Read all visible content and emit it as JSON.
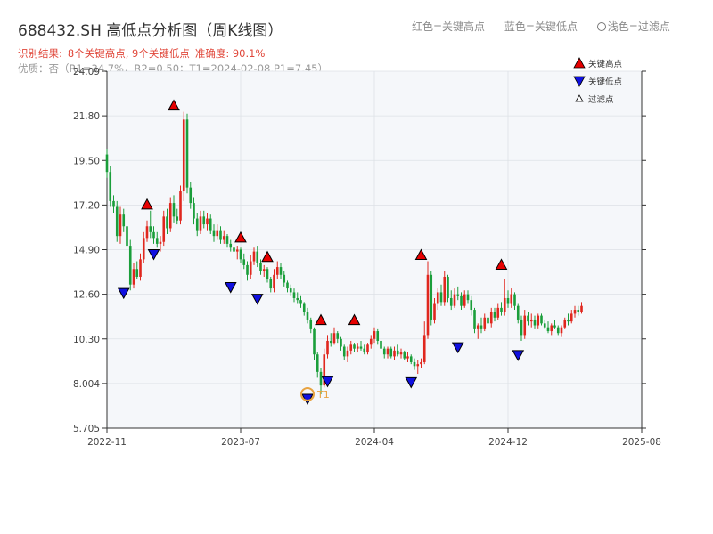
{
  "header": {
    "title": "688432.SH 高低点分析图（周K线图）",
    "legend_red": "红色=关键高点",
    "legend_blue": "蓝色=关键低点",
    "legend_hollow": "浅色=过滤点",
    "result_prefix": "识别结果:",
    "result_detail": "8个关键高点, 9个关键低点",
    "accuracy": "准确度: 90.1%",
    "quality": "优质：否（R1=34.7%，R2=0.50；T1=2024-02-08,P1=7.45）"
  },
  "chart_data": {
    "type": "candlestick",
    "y_ticks": [
      "5.705",
      "8.004",
      "10.30",
      "12.60",
      "14.90",
      "17.20",
      "19.50",
      "21.80",
      "24.09"
    ],
    "ylim": [
      5.705,
      24.09
    ],
    "x_ticks": [
      "2022-11",
      "2023-07",
      "2024-04",
      "2024-12",
      "2025-08"
    ],
    "x_tick_positions": [
      0,
      40,
      80,
      120,
      160
    ],
    "xlim": [
      0,
      160
    ],
    "candles": [
      {
        "o": 19.8,
        "h": 20.1,
        "l": 18.6,
        "c": 18.9
      },
      {
        "o": 18.9,
        "h": 19.2,
        "l": 17.1,
        "c": 17.4
      },
      {
        "o": 17.4,
        "h": 17.7,
        "l": 16.8,
        "c": 17.1
      },
      {
        "o": 17.1,
        "h": 17.4,
        "l": 15.3,
        "c": 15.6
      },
      {
        "o": 15.6,
        "h": 17.1,
        "l": 15.2,
        "c": 16.7
      },
      {
        "o": 16.7,
        "h": 17.0,
        "l": 15.8,
        "c": 16.1
      },
      {
        "o": 16.1,
        "h": 16.4,
        "l": 14.8,
        "c": 15.1
      },
      {
        "o": 15.1,
        "h": 15.4,
        "l": 12.8,
        "c": 13.1
      },
      {
        "o": 13.1,
        "h": 14.2,
        "l": 12.9,
        "c": 13.9
      },
      {
        "o": 13.9,
        "h": 14.3,
        "l": 13.4,
        "c": 13.5
      },
      {
        "o": 13.5,
        "h": 14.7,
        "l": 13.3,
        "c": 14.4
      },
      {
        "o": 14.4,
        "h": 15.8,
        "l": 14.2,
        "c": 15.5
      },
      {
        "o": 15.5,
        "h": 16.4,
        "l": 15.3,
        "c": 16.1
      },
      {
        "o": 16.1,
        "h": 16.9,
        "l": 15.5,
        "c": 15.8
      },
      {
        "o": 15.8,
        "h": 16.1,
        "l": 15.2,
        "c": 15.5
      },
      {
        "o": 15.5,
        "h": 15.8,
        "l": 15.0,
        "c": 15.2
      },
      {
        "o": 15.2,
        "h": 15.6,
        "l": 14.8,
        "c": 15.3
      },
      {
        "o": 15.3,
        "h": 16.9,
        "l": 15.1,
        "c": 16.6
      },
      {
        "o": 16.6,
        "h": 17.0,
        "l": 15.7,
        "c": 16.0
      },
      {
        "o": 16.0,
        "h": 17.6,
        "l": 15.8,
        "c": 17.3
      },
      {
        "o": 17.3,
        "h": 17.7,
        "l": 16.3,
        "c": 16.6
      },
      {
        "o": 16.6,
        "h": 17.0,
        "l": 16.2,
        "c": 16.4
      },
      {
        "o": 16.4,
        "h": 18.2,
        "l": 16.2,
        "c": 17.9
      },
      {
        "o": 17.9,
        "h": 22.0,
        "l": 17.4,
        "c": 21.6
      },
      {
        "o": 21.6,
        "h": 21.9,
        "l": 17.8,
        "c": 18.1
      },
      {
        "o": 18.1,
        "h": 18.4,
        "l": 17.0,
        "c": 17.3
      },
      {
        "o": 17.3,
        "h": 17.6,
        "l": 16.2,
        "c": 16.5
      },
      {
        "o": 16.5,
        "h": 16.8,
        "l": 15.6,
        "c": 15.9
      },
      {
        "o": 15.9,
        "h": 16.9,
        "l": 15.7,
        "c": 16.6
      },
      {
        "o": 16.6,
        "h": 16.9,
        "l": 16.0,
        "c": 16.2
      },
      {
        "o": 16.2,
        "h": 16.8,
        "l": 15.9,
        "c": 16.5
      },
      {
        "o": 16.5,
        "h": 16.7,
        "l": 15.7,
        "c": 15.9
      },
      {
        "o": 15.9,
        "h": 16.2,
        "l": 15.3,
        "c": 15.6
      },
      {
        "o": 15.6,
        "h": 16.2,
        "l": 15.4,
        "c": 15.9
      },
      {
        "o": 15.9,
        "h": 16.1,
        "l": 15.2,
        "c": 15.4
      },
      {
        "o": 15.4,
        "h": 15.9,
        "l": 15.2,
        "c": 15.6
      },
      {
        "o": 15.6,
        "h": 15.7,
        "l": 15.0,
        "c": 15.2
      },
      {
        "o": 15.2,
        "h": 15.4,
        "l": 14.8,
        "c": 15.0
      },
      {
        "o": 15.0,
        "h": 15.2,
        "l": 14.6,
        "c": 14.8
      },
      {
        "o": 14.8,
        "h": 15.1,
        "l": 14.4,
        "c": 14.9
      },
      {
        "o": 14.9,
        "h": 15.0,
        "l": 14.2,
        "c": 14.4
      },
      {
        "o": 14.4,
        "h": 14.7,
        "l": 13.9,
        "c": 14.1
      },
      {
        "o": 14.1,
        "h": 14.3,
        "l": 13.3,
        "c": 13.6
      },
      {
        "o": 13.6,
        "h": 14.6,
        "l": 13.4,
        "c": 14.3
      },
      {
        "o": 14.3,
        "h": 15.0,
        "l": 14.1,
        "c": 14.8
      },
      {
        "o": 14.8,
        "h": 15.1,
        "l": 14.0,
        "c": 14.2
      },
      {
        "o": 14.2,
        "h": 14.4,
        "l": 13.6,
        "c": 13.8
      },
      {
        "o": 13.8,
        "h": 14.1,
        "l": 13.5,
        "c": 13.9
      },
      {
        "o": 13.9,
        "h": 14.0,
        "l": 13.2,
        "c": 13.4
      },
      {
        "o": 13.4,
        "h": 13.5,
        "l": 12.7,
        "c": 12.9
      },
      {
        "o": 12.9,
        "h": 13.9,
        "l": 12.7,
        "c": 13.6
      },
      {
        "o": 13.6,
        "h": 14.3,
        "l": 13.4,
        "c": 14.0
      },
      {
        "o": 14.0,
        "h": 14.2,
        "l": 13.4,
        "c": 13.6
      },
      {
        "o": 13.6,
        "h": 13.8,
        "l": 13.0,
        "c": 13.2
      },
      {
        "o": 13.2,
        "h": 13.3,
        "l": 12.7,
        "c": 12.9
      },
      {
        "o": 12.9,
        "h": 13.1,
        "l": 12.5,
        "c": 12.7
      },
      {
        "o": 12.7,
        "h": 12.9,
        "l": 12.2,
        "c": 12.4
      },
      {
        "o": 12.4,
        "h": 12.7,
        "l": 12.1,
        "c": 12.3
      },
      {
        "o": 12.3,
        "h": 12.5,
        "l": 11.9,
        "c": 12.1
      },
      {
        "o": 12.1,
        "h": 12.2,
        "l": 11.5,
        "c": 11.7
      },
      {
        "o": 11.7,
        "h": 11.9,
        "l": 11.1,
        "c": 11.3
      },
      {
        "o": 11.3,
        "h": 11.4,
        "l": 10.6,
        "c": 10.8
      },
      {
        "o": 10.8,
        "h": 10.9,
        "l": 9.2,
        "c": 9.5
      },
      {
        "o": 9.5,
        "h": 9.6,
        "l": 8.3,
        "c": 8.6
      },
      {
        "o": 8.6,
        "h": 8.8,
        "l": 7.45,
        "c": 7.9
      },
      {
        "o": 7.9,
        "h": 9.8,
        "l": 7.8,
        "c": 9.5
      },
      {
        "o": 9.5,
        "h": 10.5,
        "l": 9.3,
        "c": 10.2
      },
      {
        "o": 10.2,
        "h": 10.6,
        "l": 9.9,
        "c": 10.1
      },
      {
        "o": 10.1,
        "h": 10.9,
        "l": 10.0,
        "c": 10.6
      },
      {
        "o": 10.6,
        "h": 10.7,
        "l": 10.1,
        "c": 10.3
      },
      {
        "o": 10.3,
        "h": 10.4,
        "l": 9.7,
        "c": 9.9
      },
      {
        "o": 9.9,
        "h": 10.0,
        "l": 9.2,
        "c": 9.4
      },
      {
        "o": 9.4,
        "h": 9.9,
        "l": 9.1,
        "c": 9.7
      },
      {
        "o": 9.7,
        "h": 10.2,
        "l": 9.5,
        "c": 10.0
      },
      {
        "o": 10.0,
        "h": 10.1,
        "l": 9.6,
        "c": 9.8
      },
      {
        "o": 9.8,
        "h": 10.1,
        "l": 9.6,
        "c": 9.9
      },
      {
        "o": 9.9,
        "h": 10.2,
        "l": 9.7,
        "c": 9.8
      },
      {
        "o": 9.8,
        "h": 10.0,
        "l": 9.5,
        "c": 9.6
      },
      {
        "o": 9.6,
        "h": 10.1,
        "l": 9.5,
        "c": 10.0
      },
      {
        "o": 10.0,
        "h": 10.5,
        "l": 9.8,
        "c": 10.3
      },
      {
        "o": 10.3,
        "h": 10.9,
        "l": 10.1,
        "c": 10.7
      },
      {
        "o": 10.7,
        "h": 10.8,
        "l": 10.0,
        "c": 10.2
      },
      {
        "o": 10.2,
        "h": 10.3,
        "l": 9.6,
        "c": 9.8
      },
      {
        "o": 9.8,
        "h": 9.9,
        "l": 9.3,
        "c": 9.5
      },
      {
        "o": 9.5,
        "h": 9.9,
        "l": 9.3,
        "c": 9.8
      },
      {
        "o": 9.8,
        "h": 9.9,
        "l": 9.3,
        "c": 9.4
      },
      {
        "o": 9.4,
        "h": 9.9,
        "l": 9.2,
        "c": 9.7
      },
      {
        "o": 9.7,
        "h": 10.0,
        "l": 9.4,
        "c": 9.5
      },
      {
        "o": 9.5,
        "h": 9.8,
        "l": 9.3,
        "c": 9.6
      },
      {
        "o": 9.6,
        "h": 9.7,
        "l": 9.2,
        "c": 9.3
      },
      {
        "o": 9.3,
        "h": 9.6,
        "l": 9.1,
        "c": 9.4
      },
      {
        "o": 9.4,
        "h": 9.5,
        "l": 9.0,
        "c": 9.1
      },
      {
        "o": 9.1,
        "h": 9.3,
        "l": 8.7,
        "c": 8.9
      },
      {
        "o": 8.9,
        "h": 9.2,
        "l": 8.5,
        "c": 9.0
      },
      {
        "o": 9.0,
        "h": 9.3,
        "l": 8.8,
        "c": 9.1
      },
      {
        "o": 9.1,
        "h": 11.2,
        "l": 9.0,
        "c": 10.5
      },
      {
        "o": 10.5,
        "h": 14.3,
        "l": 10.3,
        "c": 13.6
      },
      {
        "o": 13.6,
        "h": 13.8,
        "l": 11.0,
        "c": 11.3
      },
      {
        "o": 11.3,
        "h": 12.4,
        "l": 11.1,
        "c": 12.1
      },
      {
        "o": 12.1,
        "h": 12.9,
        "l": 11.8,
        "c": 12.7
      },
      {
        "o": 12.7,
        "h": 13.1,
        "l": 12.0,
        "c": 12.2
      },
      {
        "o": 12.2,
        "h": 13.8,
        "l": 12.0,
        "c": 13.5
      },
      {
        "o": 13.5,
        "h": 13.6,
        "l": 12.2,
        "c": 12.4
      },
      {
        "o": 12.4,
        "h": 12.8,
        "l": 11.8,
        "c": 12.0
      },
      {
        "o": 12.0,
        "h": 12.9,
        "l": 11.9,
        "c": 12.6
      },
      {
        "o": 12.6,
        "h": 13.0,
        "l": 12.3,
        "c": 12.5
      },
      {
        "o": 12.5,
        "h": 12.7,
        "l": 11.8,
        "c": 12.0
      },
      {
        "o": 12.0,
        "h": 12.8,
        "l": 11.9,
        "c": 12.6
      },
      {
        "o": 12.6,
        "h": 12.8,
        "l": 12.1,
        "c": 12.3
      },
      {
        "o": 12.3,
        "h": 12.5,
        "l": 11.5,
        "c": 11.8
      },
      {
        "o": 11.8,
        "h": 11.9,
        "l": 10.6,
        "c": 10.8
      },
      {
        "o": 10.8,
        "h": 11.1,
        "l": 10.3,
        "c": 11.0
      },
      {
        "o": 11.0,
        "h": 11.4,
        "l": 10.6,
        "c": 10.8
      },
      {
        "o": 10.8,
        "h": 11.6,
        "l": 10.7,
        "c": 11.4
      },
      {
        "o": 11.4,
        "h": 11.6,
        "l": 10.9,
        "c": 11.1
      },
      {
        "o": 11.1,
        "h": 11.9,
        "l": 10.9,
        "c": 11.7
      },
      {
        "o": 11.7,
        "h": 11.9,
        "l": 11.2,
        "c": 11.4
      },
      {
        "o": 11.4,
        "h": 12.1,
        "l": 11.3,
        "c": 11.9
      },
      {
        "o": 11.9,
        "h": 12.2,
        "l": 11.5,
        "c": 11.7
      },
      {
        "o": 11.7,
        "h": 13.4,
        "l": 11.5,
        "c": 12.4
      },
      {
        "o": 12.4,
        "h": 12.8,
        "l": 11.9,
        "c": 12.1
      },
      {
        "o": 12.1,
        "h": 12.9,
        "l": 11.9,
        "c": 12.6
      },
      {
        "o": 12.6,
        "h": 12.7,
        "l": 11.8,
        "c": 12.0
      },
      {
        "o": 12.0,
        "h": 12.1,
        "l": 11.1,
        "c": 11.3
      },
      {
        "o": 11.3,
        "h": 11.5,
        "l": 10.2,
        "c": 10.5
      },
      {
        "o": 10.5,
        "h": 11.8,
        "l": 10.3,
        "c": 11.5
      },
      {
        "o": 11.5,
        "h": 11.7,
        "l": 11.0,
        "c": 11.2
      },
      {
        "o": 11.2,
        "h": 11.6,
        "l": 10.9,
        "c": 11.3
      },
      {
        "o": 11.3,
        "h": 11.5,
        "l": 10.8,
        "c": 11.0
      },
      {
        "o": 11.0,
        "h": 11.6,
        "l": 10.8,
        "c": 11.5
      },
      {
        "o": 11.5,
        "h": 11.6,
        "l": 11.0,
        "c": 11.1
      },
      {
        "o": 11.1,
        "h": 11.3,
        "l": 10.8,
        "c": 10.9
      },
      {
        "o": 10.9,
        "h": 11.2,
        "l": 10.6,
        "c": 10.7
      },
      {
        "o": 10.7,
        "h": 11.1,
        "l": 10.5,
        "c": 11.0
      },
      {
        "o": 11.0,
        "h": 11.3,
        "l": 10.8,
        "c": 10.9
      },
      {
        "o": 10.9,
        "h": 11.0,
        "l": 10.5,
        "c": 10.6
      },
      {
        "o": 10.6,
        "h": 11.0,
        "l": 10.4,
        "c": 10.9
      },
      {
        "o": 10.9,
        "h": 11.4,
        "l": 10.8,
        "c": 11.3
      },
      {
        "o": 11.3,
        "h": 11.6,
        "l": 11.0,
        "c": 11.2
      },
      {
        "o": 11.2,
        "h": 11.8,
        "l": 11.1,
        "c": 11.6
      },
      {
        "o": 11.6,
        "h": 12.0,
        "l": 11.4,
        "c": 11.8
      },
      {
        "o": 11.8,
        "h": 12.0,
        "l": 11.5,
        "c": 11.7
      },
      {
        "o": 11.7,
        "h": 12.2,
        "l": 11.6,
        "c": 12.0
      }
    ],
    "key_highs": [
      {
        "i": 12,
        "v": 16.9
      },
      {
        "i": 20,
        "v": 22.0
      },
      {
        "i": 40,
        "v": 15.2
      },
      {
        "i": 48,
        "v": 14.2
      },
      {
        "i": 64,
        "v": 10.95
      },
      {
        "i": 74,
        "v": 10.95
      },
      {
        "i": 94,
        "v": 14.3
      },
      {
        "i": 118,
        "v": 13.8
      }
    ],
    "key_lows": [
      {
        "i": 5,
        "v": 12.9
      },
      {
        "i": 14,
        "v": 14.9
      },
      {
        "i": 37,
        "v": 13.2
      },
      {
        "i": 45,
        "v": 12.6
      },
      {
        "i": 60,
        "v": 7.45
      },
      {
        "i": 66,
        "v": 8.35
      },
      {
        "i": 91,
        "v": 8.3
      },
      {
        "i": 105,
        "v": 10.1
      },
      {
        "i": 123,
        "v": 9.7
      }
    ],
    "t1": {
      "i": 60,
      "v": 7.45,
      "label": "T1"
    },
    "legend": {
      "high": "关键高点",
      "low": "关键低点",
      "filtered": "过滤点",
      "placement": "top-right"
    },
    "colors": {
      "up": "#e0271e",
      "down": "#1a9e3a",
      "high_marker": "#e60000",
      "low_marker": "#1010e0",
      "t1": "#e8a341"
    },
    "grid": true
  }
}
